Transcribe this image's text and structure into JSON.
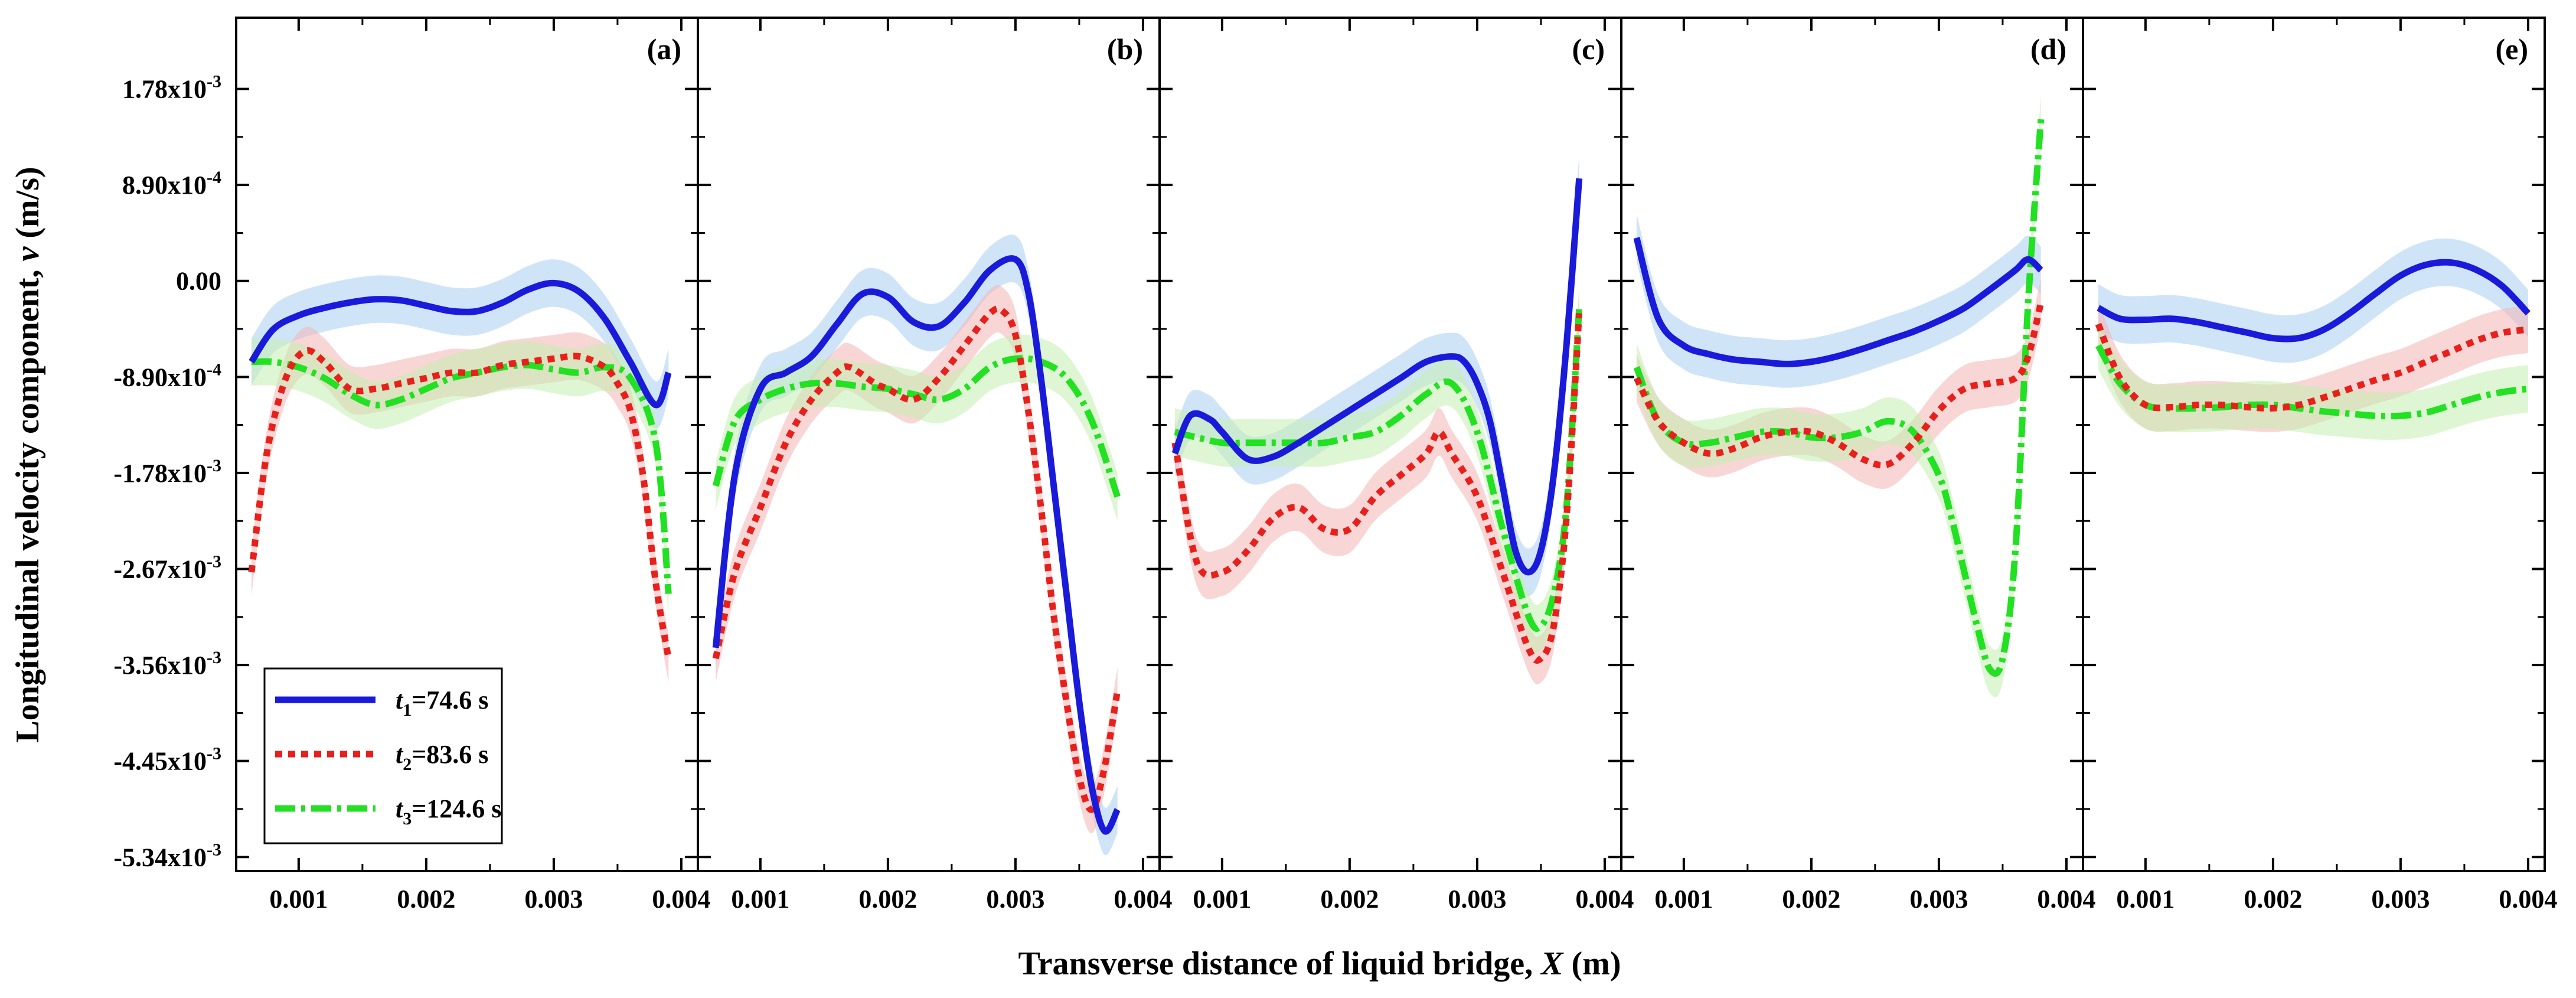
{
  "chart_data": {
    "type": "line",
    "ylabel": {
      "prefix": "Longitudinal velocity component, ",
      "symbol": "v",
      "suffix": " (m/s)"
    },
    "xlabel": {
      "prefix": "Transverse distance of liquid bridge, ",
      "symbol": "X",
      "suffix": " (m)"
    },
    "y_ticks": [
      {
        "value": 0.00178,
        "label": "1.78x10",
        "exp": "-3"
      },
      {
        "value": 0.00089,
        "label": "8.90x10",
        "exp": "-4"
      },
      {
        "value": 0.0,
        "label": "0.00",
        "exp": ""
      },
      {
        "value": -0.00089,
        "label": "-8.90x10",
        "exp": "-4"
      },
      {
        "value": -0.00178,
        "label": "-1.78x10",
        "exp": "-3"
      },
      {
        "value": -0.00267,
        "label": "-2.67x10",
        "exp": "-3"
      },
      {
        "value": -0.00356,
        "label": "-3.56x10",
        "exp": "-3"
      },
      {
        "value": -0.00445,
        "label": "-4.45x10",
        "exp": "-3"
      },
      {
        "value": -0.00534,
        "label": "-5.34x10",
        "exp": "-3"
      }
    ],
    "x_ticks": [
      {
        "value": 0.001,
        "label": "0.001"
      },
      {
        "value": 0.002,
        "label": "0.002"
      },
      {
        "value": 0.003,
        "label": "0.003"
      },
      {
        "value": 0.004,
        "label": "0.004"
      }
    ],
    "xlim": [
      0.00051,
      0.00413
    ],
    "ylim": [
      -0.00547,
      0.00244
    ],
    "legend": [
      {
        "sym": "t",
        "sub": "1",
        "text": "=74.6 s",
        "color": "#1a1adb",
        "dash": "solid"
      },
      {
        "sym": "t",
        "sub": "2",
        "text": "=83.6 s",
        "color": "#e8201c",
        "dash": "dot"
      },
      {
        "sym": "t",
        "sub": "3",
        "text": "=124.6 s",
        "color": "#22e022",
        "dash": "dashdot"
      }
    ],
    "band_colors": [
      "#a9cdf3",
      "#f4b4b4",
      "#c4efb0"
    ],
    "panels": [
      {
        "label": "(a)",
        "series": [
          {
            "x": [
              0.00063,
              0.0008,
              0.001,
              0.0012,
              0.0014,
              0.0016,
              0.0018,
              0.002,
              0.0022,
              0.0024,
              0.0026,
              0.0028,
              0.003,
              0.0032,
              0.0034,
              0.0036,
              0.0038,
              0.0039
            ],
            "y": [
              -0.00075,
              -0.00045,
              -0.00032,
              -0.00025,
              -0.0002,
              -0.00017,
              -0.00018,
              -0.00023,
              -0.00028,
              -0.00028,
              -0.0002,
              -8e-05,
              -2e-05,
              -0.0001,
              -0.00035,
              -0.00075,
              -0.00115,
              -0.00085
            ]
          },
          {
            "x": [
              0.00063,
              0.00075,
              0.0009,
              0.00105,
              0.0012,
              0.0014,
              0.0016,
              0.0018,
              0.002,
              0.0022,
              0.0024,
              0.0026,
              0.0028,
              0.003,
              0.0032,
              0.0034,
              0.0035,
              0.0036,
              0.0037,
              0.0038,
              0.0039
            ],
            "y": [
              -0.0027,
              -0.0016,
              -0.0009,
              -0.00065,
              -0.00075,
              -0.001,
              -0.001,
              -0.00095,
              -0.0009,
              -0.00085,
              -0.00085,
              -0.00078,
              -0.00075,
              -0.00072,
              -0.0007,
              -0.0008,
              -0.00095,
              -0.0012,
              -0.0018,
              -0.0028,
              -0.0035
            ]
          },
          {
            "x": [
              0.00063,
              0.0008,
              0.001,
              0.0012,
              0.0014,
              0.0016,
              0.0018,
              0.002,
              0.0022,
              0.0024,
              0.0026,
              0.0028,
              0.003,
              0.0032,
              0.0034,
              0.0036,
              0.0038,
              0.0039
            ],
            "y": [
              -0.00075,
              -0.00075,
              -0.0008,
              -0.0009,
              -0.00105,
              -0.00115,
              -0.0011,
              -0.001,
              -0.0009,
              -0.00085,
              -0.0008,
              -0.00078,
              -0.00082,
              -0.00085,
              -0.0008,
              -0.0009,
              -0.0015,
              -0.0029
            ]
          }
        ]
      },
      {
        "label": "(b)",
        "series": [
          {
            "x": [
              0.00065,
              0.0008,
              0.001,
              0.0012,
              0.0014,
              0.0016,
              0.0018,
              0.002,
              0.0022,
              0.0024,
              0.0026,
              0.0028,
              0.003,
              0.0031,
              0.0032,
              0.0033,
              0.0034,
              0.0035,
              0.0036,
              0.0037,
              0.0038
            ],
            "y": [
              -0.0034,
              -0.0018,
              -0.001,
              -0.00085,
              -0.0007,
              -0.0004,
              -0.00012,
              -0.00015,
              -0.00038,
              -0.00042,
              -0.0002,
              0.0001,
              0.0002,
              -0.0001,
              -0.0009,
              -0.0019,
              -0.0029,
              -0.0039,
              -0.0047,
              -0.0051,
              -0.0049
            ]
          },
          {
            "x": [
              0.00065,
              0.0008,
              0.001,
              0.0012,
              0.0014,
              0.0016,
              0.0017,
              0.0019,
              0.002,
              0.0022,
              0.0024,
              0.0026,
              0.0028,
              0.0029,
              0.003,
              0.0031,
              0.0032,
              0.0033,
              0.0034,
              0.0035,
              0.0036,
              0.0037,
              0.0038
            ],
            "y": [
              -0.0035,
              -0.0027,
              -0.0021,
              -0.0015,
              -0.0011,
              -0.00085,
              -0.0008,
              -0.00095,
              -0.001,
              -0.0011,
              -0.0009,
              -0.0006,
              -0.0003,
              -0.00028,
              -0.0005,
              -0.0012,
              -0.0021,
              -0.0031,
              -0.0039,
              -0.0046,
              -0.0049,
              -0.0045,
              -0.0038
            ]
          },
          {
            "x": [
              0.00065,
              0.0008,
              0.001,
              0.0012,
              0.0014,
              0.0016,
              0.0018,
              0.002,
              0.0022,
              0.0024,
              0.0026,
              0.0028,
              0.003,
              0.0032,
              0.0034,
              0.0036,
              0.0038
            ],
            "y": [
              -0.0019,
              -0.0013,
              -0.0011,
              -0.001,
              -0.00095,
              -0.00095,
              -0.00098,
              -0.001,
              -0.00105,
              -0.0011,
              -0.001,
              -0.0008,
              -0.00072,
              -0.00075,
              -0.0009,
              -0.0013,
              -0.002
            ]
          }
        ]
      },
      {
        "label": "(c)",
        "series": [
          {
            "x": [
              0.00063,
              0.00075,
              0.0009,
              0.001,
              0.0012,
              0.0014,
              0.0016,
              0.0018,
              0.002,
              0.0022,
              0.0024,
              0.0026,
              0.0028,
              0.0029,
              0.003,
              0.0031,
              0.0032,
              0.0033,
              0.0034,
              0.0035,
              0.0036,
              0.0037,
              0.0038
            ],
            "y": [
              -0.0016,
              -0.00125,
              -0.00128,
              -0.0014,
              -0.00165,
              -0.00163,
              -0.0015,
              -0.00135,
              -0.0012,
              -0.00105,
              -0.0009,
              -0.00075,
              -0.0007,
              -0.00075,
              -0.00095,
              -0.0013,
              -0.0019,
              -0.0025,
              -0.0027,
              -0.0025,
              -0.0018,
              -0.0006,
              0.00095
            ]
          },
          {
            "x": [
              0.00063,
              0.0008,
              0.001,
              0.0012,
              0.0014,
              0.0016,
              0.0018,
              0.002,
              0.0022,
              0.0024,
              0.0026,
              0.0027,
              0.0028,
              0.003,
              0.0032,
              0.0034,
              0.0035,
              0.0036,
              0.0037,
              0.0038
            ],
            "y": [
              -0.0015,
              -0.0026,
              -0.0027,
              -0.0025,
              -0.0022,
              -0.0021,
              -0.0023,
              -0.0023,
              -0.002,
              -0.0018,
              -0.0016,
              -0.0014,
              -0.0016,
              -0.002,
              -0.0027,
              -0.0034,
              -0.0035,
              -0.0032,
              -0.0022,
              -0.0003
            ]
          },
          {
            "x": [
              0.00063,
              0.0008,
              0.001,
              0.0012,
              0.0014,
              0.0016,
              0.0018,
              0.002,
              0.0022,
              0.0024,
              0.0026,
              0.0028,
              0.003,
              0.0032,
              0.0034,
              0.0035,
              0.0036,
              0.0037,
              0.0038
            ],
            "y": [
              -0.0014,
              -0.00145,
              -0.0015,
              -0.0015,
              -0.0015,
              -0.0015,
              -0.0015,
              -0.00145,
              -0.0014,
              -0.00125,
              -0.00105,
              -0.00095,
              -0.0014,
              -0.0023,
              -0.0031,
              -0.0032,
              -0.0029,
              -0.0021,
              -0.00025
            ]
          }
        ]
      },
      {
        "label": "(d)",
        "series": [
          {
            "x": [
              0.00063,
              0.0008,
              0.001,
              0.0012,
              0.0014,
              0.0016,
              0.0018,
              0.002,
              0.0022,
              0.0024,
              0.0026,
              0.0028,
              0.003,
              0.0032,
              0.0034,
              0.0036,
              0.0037,
              0.0038
            ],
            "y": [
              0.0004,
              -0.00035,
              -0.0006,
              -0.00068,
              -0.00073,
              -0.00075,
              -0.00077,
              -0.00075,
              -0.0007,
              -0.00063,
              -0.00055,
              -0.00047,
              -0.00037,
              -0.00025,
              -8e-05,
              0.0001,
              0.0002,
              0.0001
            ]
          },
          {
            "x": [
              0.00063,
              0.0008,
              0.001,
              0.0012,
              0.0014,
              0.0016,
              0.0018,
              0.002,
              0.0022,
              0.0024,
              0.0026,
              0.0028,
              0.003,
              0.0032,
              0.0034,
              0.0036,
              0.0037,
              0.0038
            ],
            "y": [
              -0.0009,
              -0.0013,
              -0.0015,
              -0.0016,
              -0.00155,
              -0.00145,
              -0.0014,
              -0.0014,
              -0.0015,
              -0.00165,
              -0.0017,
              -0.0015,
              -0.0012,
              -0.001,
              -0.00095,
              -0.0009,
              -0.0007,
              -0.0002
            ]
          },
          {
            "x": [
              0.00063,
              0.0008,
              0.001,
              0.0012,
              0.0014,
              0.0016,
              0.0018,
              0.002,
              0.0022,
              0.0024,
              0.0026,
              0.0028,
              0.003,
              0.0031,
              0.0032,
              0.0033,
              0.0034,
              0.0035,
              0.0036,
              0.0037,
              0.0038
            ],
            "y": [
              -0.0008,
              -0.0013,
              -0.0015,
              -0.0015,
              -0.00145,
              -0.0014,
              -0.0014,
              -0.00145,
              -0.00145,
              -0.0014,
              -0.0013,
              -0.0014,
              -0.0018,
              -0.0022,
              -0.0027,
              -0.0032,
              -0.0036,
              -0.0035,
              -0.0025,
              -0.0002,
              0.0015
            ]
          }
        ]
      },
      {
        "label": "(e)",
        "series": [
          {
            "x": [
              0.00063,
              0.0008,
              0.001,
              0.0012,
              0.0014,
              0.0016,
              0.0018,
              0.002,
              0.0022,
              0.0024,
              0.0026,
              0.0028,
              0.003,
              0.0032,
              0.0034,
              0.0036,
              0.0038,
              0.004
            ],
            "y": [
              -0.00025,
              -0.00035,
              -0.00036,
              -0.00035,
              -0.00038,
              -0.00043,
              -0.00048,
              -0.00053,
              -0.00053,
              -0.00045,
              -0.0003,
              -0.00012,
              5e-05,
              0.00015,
              0.00017,
              0.0001,
              -5e-05,
              -0.0003
            ]
          },
          {
            "x": [
              0.00063,
              0.0008,
              0.001,
              0.0012,
              0.0014,
              0.0016,
              0.0018,
              0.002,
              0.0022,
              0.0024,
              0.0026,
              0.0028,
              0.003,
              0.0032,
              0.0034,
              0.0036,
              0.0038,
              0.004
            ],
            "y": [
              -0.0004,
              -0.0009,
              -0.00115,
              -0.00117,
              -0.00115,
              -0.00115,
              -0.00117,
              -0.00118,
              -0.00115,
              -0.00108,
              -0.001,
              -0.00092,
              -0.00085,
              -0.00075,
              -0.00065,
              -0.00055,
              -0.00048,
              -0.00045
            ]
          },
          {
            "x": [
              0.00063,
              0.0008,
              0.001,
              0.0012,
              0.0014,
              0.0016,
              0.0018,
              0.002,
              0.0022,
              0.0024,
              0.0026,
              0.0028,
              0.003,
              0.0032,
              0.0034,
              0.0036,
              0.0038,
              0.004
            ],
            "y": [
              -0.0006,
              -0.00095,
              -0.00115,
              -0.00118,
              -0.00118,
              -0.00117,
              -0.00115,
              -0.00115,
              -0.00118,
              -0.00121,
              -0.00123,
              -0.00125,
              -0.00125,
              -0.00122,
              -0.00115,
              -0.00108,
              -0.00103,
              -0.001
            ]
          }
        ]
      }
    ]
  }
}
